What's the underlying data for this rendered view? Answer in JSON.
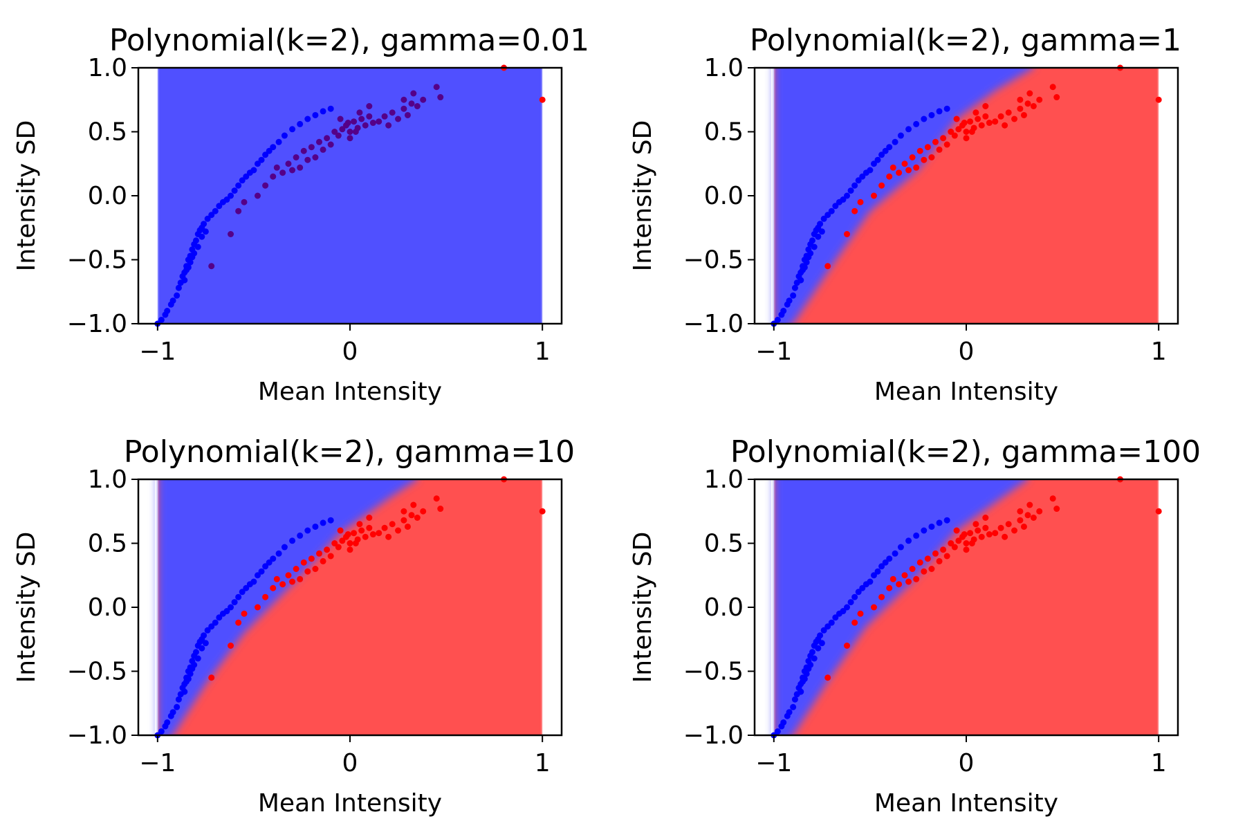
{
  "chart_data": {
    "type": "scatter",
    "colors": {
      "class_a": "#0000ff",
      "class_b": "#ff0000",
      "region_a": "#5050ff",
      "region_b": "#ff5050",
      "misclassified_overlay": "#550088"
    },
    "xlabel": "Mean Intensity",
    "ylabel": "Intensity SD",
    "xlim": [
      -1.1,
      1.1
    ],
    "ylim": [
      -1.0,
      1.0
    ],
    "xticks": [
      -1,
      0,
      1
    ],
    "xtick_labels": [
      "−1",
      "0",
      "1"
    ],
    "yticks": [
      1.0,
      0.5,
      0.0,
      -0.5,
      -1.0
    ],
    "ytick_labels": [
      "1.0",
      "0.5",
      "0.0",
      "−0.5",
      "−1.0"
    ],
    "shaded_x_range": [
      -1.0,
      1.0
    ],
    "grid": false,
    "class_a_points": [
      [
        -1.0,
        -1.0
      ],
      [
        -0.98,
        -0.97
      ],
      [
        -0.96,
        -0.93
      ],
      [
        -0.95,
        -0.9
      ],
      [
        -0.93,
        -0.85
      ],
      [
        -0.92,
        -0.82
      ],
      [
        -0.9,
        -0.78
      ],
      [
        -0.89,
        -0.72
      ],
      [
        -0.88,
        -0.68
      ],
      [
        -0.87,
        -0.63
      ],
      [
        -0.86,
        -0.6
      ],
      [
        -0.85,
        -0.55
      ],
      [
        -0.84,
        -0.5
      ],
      [
        -0.83,
        -0.47
      ],
      [
        -0.82,
        -0.42
      ],
      [
        -0.81,
        -0.38
      ],
      [
        -0.8,
        -0.35
      ],
      [
        -0.79,
        -0.3
      ],
      [
        -0.78,
        -0.27
      ],
      [
        -0.77,
        -0.25
      ],
      [
        -0.76,
        -0.22
      ],
      [
        -0.74,
        -0.18
      ],
      [
        -0.72,
        -0.15
      ],
      [
        -0.7,
        -0.12
      ],
      [
        -0.68,
        -0.08
      ],
      [
        -0.66,
        -0.05
      ],
      [
        -0.64,
        -0.03
      ],
      [
        -0.62,
        0.0
      ],
      [
        -0.6,
        0.04
      ],
      [
        -0.58,
        0.08
      ],
      [
        -0.56,
        0.12
      ],
      [
        -0.54,
        0.15
      ],
      [
        -0.52,
        0.18
      ],
      [
        -0.5,
        0.2
      ],
      [
        -0.48,
        0.25
      ],
      [
        -0.46,
        0.28
      ],
      [
        -0.44,
        0.32
      ],
      [
        -0.42,
        0.35
      ],
      [
        -0.4,
        0.38
      ],
      [
        -0.37,
        0.42
      ],
      [
        -0.34,
        0.47
      ],
      [
        -0.3,
        0.52
      ],
      [
        -0.26,
        0.56
      ],
      [
        -0.22,
        0.6
      ],
      [
        -0.18,
        0.63
      ],
      [
        -0.14,
        0.66
      ],
      [
        -0.1,
        0.68
      ],
      [
        -0.85,
        -0.58
      ],
      [
        -0.83,
        -0.52
      ],
      [
        -0.81,
        -0.45
      ],
      [
        -0.79,
        -0.4
      ],
      [
        -0.77,
        -0.32
      ],
      [
        -0.75,
        -0.28
      ],
      [
        -0.86,
        -0.66
      ],
      [
        -0.84,
        -0.56
      ],
      [
        -0.82,
        -0.48
      ]
    ],
    "class_b_points": [
      [
        -0.72,
        -0.55
      ],
      [
        -0.62,
        -0.3
      ],
      [
        -0.58,
        -0.12
      ],
      [
        -0.55,
        -0.05
      ],
      [
        -0.48,
        0.0
      ],
      [
        -0.44,
        0.08
      ],
      [
        -0.4,
        0.15
      ],
      [
        -0.38,
        0.22
      ],
      [
        -0.35,
        0.18
      ],
      [
        -0.32,
        0.25
      ],
      [
        -0.3,
        0.2
      ],
      [
        -0.28,
        0.3
      ],
      [
        -0.26,
        0.22
      ],
      [
        -0.24,
        0.35
      ],
      [
        -0.22,
        0.28
      ],
      [
        -0.2,
        0.38
      ],
      [
        -0.18,
        0.3
      ],
      [
        -0.16,
        0.42
      ],
      [
        -0.14,
        0.36
      ],
      [
        -0.12,
        0.45
      ],
      [
        -0.1,
        0.4
      ],
      [
        -0.08,
        0.5
      ],
      [
        -0.06,
        0.47
      ],
      [
        -0.04,
        0.52
      ],
      [
        -0.02,
        0.55
      ],
      [
        0.0,
        0.5
      ],
      [
        0.02,
        0.58
      ],
      [
        0.04,
        0.53
      ],
      [
        0.06,
        0.6
      ],
      [
        0.08,
        0.55
      ],
      [
        0.1,
        0.62
      ],
      [
        0.12,
        0.57
      ],
      [
        0.15,
        0.58
      ],
      [
        0.18,
        0.62
      ],
      [
        0.2,
        0.55
      ],
      [
        0.22,
        0.65
      ],
      [
        0.25,
        0.6
      ],
      [
        0.28,
        0.68
      ],
      [
        0.3,
        0.63
      ],
      [
        0.32,
        0.72
      ],
      [
        0.35,
        0.7
      ],
      [
        0.38,
        0.75
      ],
      [
        0.45,
        0.85
      ],
      [
        0.47,
        0.77
      ],
      [
        0.8,
        1.0
      ],
      [
        1.0,
        0.75
      ],
      [
        0.05,
        0.65
      ],
      [
        -0.05,
        0.6
      ],
      [
        0.0,
        0.45
      ],
      [
        0.03,
        0.5
      ],
      [
        -0.01,
        0.57
      ],
      [
        0.1,
        0.7
      ],
      [
        0.28,
        0.75
      ],
      [
        0.33,
        0.8
      ]
    ],
    "panels": [
      {
        "title": "Polynomial(k=2), gamma=0.01",
        "boundary": null
      },
      {
        "title": "Polynomial(k=2), gamma=1",
        "boundary": [
          [
            -0.9,
            -1.0
          ],
          [
            -0.7,
            -0.55
          ],
          [
            -0.5,
            -0.12
          ],
          [
            -0.25,
            0.2
          ],
          [
            -0.05,
            0.6
          ],
          [
            0.15,
            0.82
          ],
          [
            0.35,
            1.0
          ]
        ]
      },
      {
        "title": "Polynomial(k=2), gamma=10",
        "boundary": [
          [
            -0.92,
            -1.0
          ],
          [
            -0.75,
            -0.6
          ],
          [
            -0.55,
            -0.2
          ],
          [
            -0.3,
            0.18
          ],
          [
            -0.05,
            0.58
          ],
          [
            0.2,
            0.85
          ],
          [
            0.35,
            1.0
          ]
        ]
      },
      {
        "title": "Polynomial(k=2), gamma=100",
        "boundary": [
          [
            -0.9,
            -1.0
          ],
          [
            -0.72,
            -0.58
          ],
          [
            -0.52,
            -0.15
          ],
          [
            -0.28,
            0.2
          ],
          [
            -0.05,
            0.6
          ],
          [
            0.18,
            0.85
          ],
          [
            0.32,
            1.0
          ]
        ]
      }
    ]
  }
}
